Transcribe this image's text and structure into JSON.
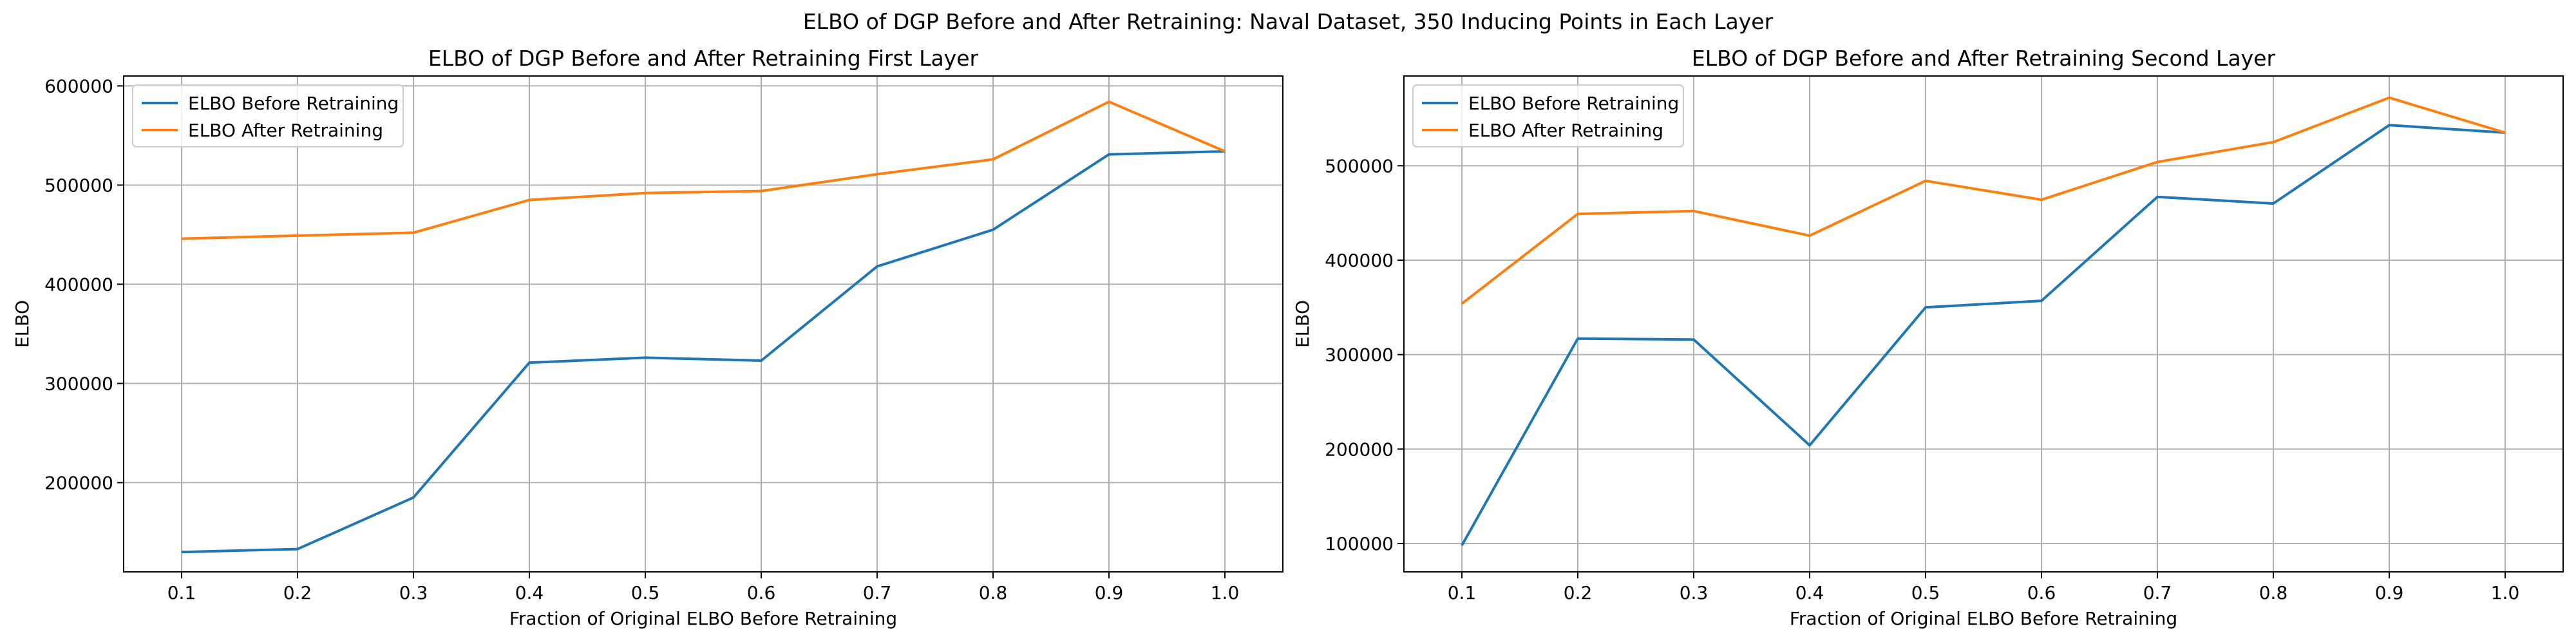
{
  "suptitle": "ELBO of DGP Before and After Retraining: Naval Dataset, 350 Inducing Points in Each Layer",
  "chart_data": [
    {
      "type": "line",
      "title": "ELBO of DGP Before and After Retraining First Layer",
      "xlabel": "Fraction of Original ELBO Before Retraining",
      "ylabel": "ELBO",
      "x": [
        0.1,
        0.2,
        0.3,
        0.4,
        0.5,
        0.6,
        0.7,
        0.8,
        0.9,
        1.0
      ],
      "xticks": [
        "0.1",
        "0.2",
        "0.3",
        "0.4",
        "0.5",
        "0.6",
        "0.7",
        "0.8",
        "0.9",
        "1.0"
      ],
      "xlim": [
        0.05,
        1.05
      ],
      "ylim": [
        110000,
        610000
      ],
      "yticks": [
        {
          "value": 200000,
          "label": "200000"
        },
        {
          "value": 300000,
          "label": "300000"
        },
        {
          "value": 400000,
          "label": "400000"
        },
        {
          "value": 500000,
          "label": "500000"
        },
        {
          "value": 600000,
          "label": "600000"
        }
      ],
      "grid": true,
      "legend_position": "upper-left",
      "series": [
        {
          "name": "ELBO Before Retraining",
          "color": "#1f77b4",
          "values": [
            130000,
            133000,
            185000,
            321000,
            326000,
            323000,
            418000,
            455000,
            531000,
            534000
          ]
        },
        {
          "name": "ELBO After Retraining",
          "color": "#ff7f0e",
          "values": [
            446000,
            449000,
            452000,
            485000,
            492000,
            494000,
            511000,
            526000,
            584000,
            534000
          ]
        }
      ]
    },
    {
      "type": "line",
      "title": "ELBO of DGP Before and After Retraining Second Layer",
      "xlabel": "Fraction of Original ELBO Before Retraining",
      "ylabel": "ELBO",
      "x": [
        0.1,
        0.2,
        0.3,
        0.4,
        0.5,
        0.6,
        0.7,
        0.8,
        0.9,
        1.0
      ],
      "xticks": [
        "0.1",
        "0.2",
        "0.3",
        "0.4",
        "0.5",
        "0.6",
        "0.7",
        "0.8",
        "0.9",
        "1.0"
      ],
      "xlim": [
        0.05,
        1.05
      ],
      "ylim": [
        70000,
        595000
      ],
      "yticks": [
        {
          "value": 100000,
          "label": "100000"
        },
        {
          "value": 200000,
          "label": "200000"
        },
        {
          "value": 300000,
          "label": "300000"
        },
        {
          "value": 400000,
          "label": "400000"
        },
        {
          "value": 500000,
          "label": "500000"
        }
      ],
      "grid": true,
      "legend_position": "upper-left",
      "series": [
        {
          "name": "ELBO Before Retraining",
          "color": "#1f77b4",
          "values": [
            98000,
            317000,
            316000,
            204000,
            350000,
            357000,
            467000,
            460000,
            543000,
            535000
          ]
        },
        {
          "name": "ELBO After Retraining",
          "color": "#ff7f0e",
          "values": [
            354000,
            449000,
            452000,
            426000,
            484000,
            464000,
            504000,
            525000,
            572000,
            535000
          ]
        }
      ]
    }
  ]
}
